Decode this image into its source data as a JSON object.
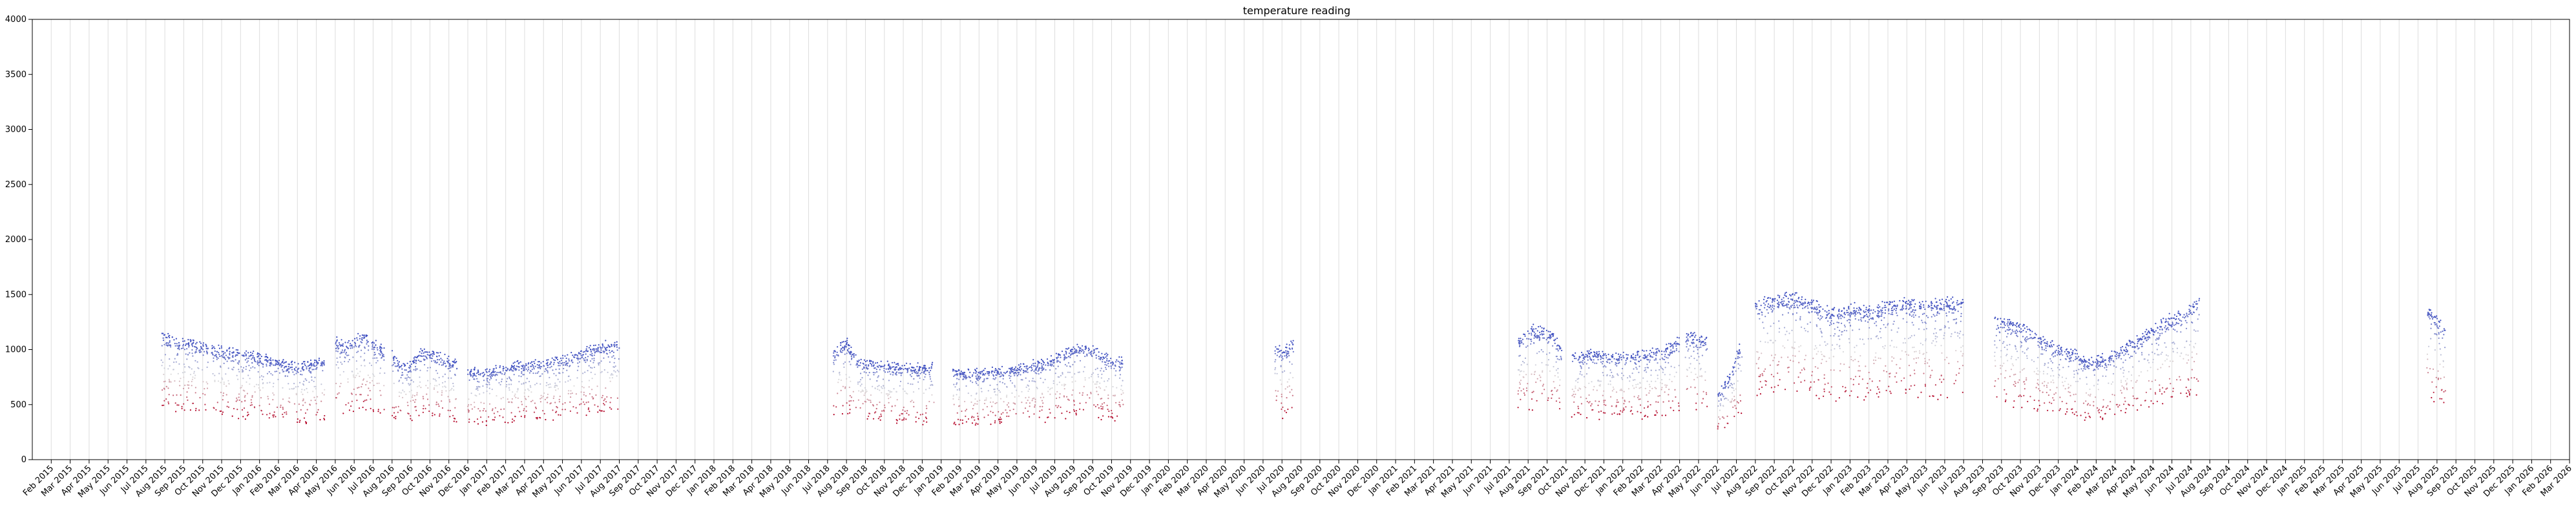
{
  "chart_data": {
    "type": "scatter",
    "title": "temperature reading",
    "xlabel": "",
    "ylabel": "",
    "ylim": [
      0,
      4000
    ],
    "yticks": [
      0,
      500,
      1000,
      1500,
      2000,
      2500,
      3000,
      3500,
      4000
    ],
    "x_axis": {
      "type": "date",
      "start": "2015-01",
      "end": "2026-03"
    },
    "xticks": [
      "Feb 2015",
      "Mar 2015",
      "Apr 2015",
      "May 2015",
      "Jun 2015",
      "Jul 2015",
      "Aug 2015",
      "Sep 2015",
      "Oct 2015",
      "Nov 2015",
      "Dec 2015",
      "Jan 2016",
      "Feb 2016",
      "Mar 2016",
      "Apr 2016",
      "May 2016",
      "Jun 2016",
      "Jul 2016",
      "Aug 2016",
      "Sep 2016",
      "Oct 2016",
      "Nov 2016",
      "Dec 2016",
      "Jan 2017",
      "Feb 2017",
      "Mar 2017",
      "Apr 2017",
      "May 2017",
      "Jun 2017",
      "Jul 2017",
      "Aug 2017",
      "Sep 2017",
      "Oct 2017",
      "Nov 2017",
      "Dec 2017",
      "Jan 2018",
      "Feb 2018",
      "Mar 2018",
      "Apr 2018",
      "May 2018",
      "Jun 2018",
      "Jul 2018",
      "Aug 2018",
      "Sep 2018",
      "Oct 2018",
      "Nov 2018",
      "Dec 2018",
      "Jan 2019",
      "Feb 2019",
      "Mar 2019",
      "Apr 2019",
      "May 2019",
      "Jun 2019",
      "Jul 2019",
      "Aug 2019",
      "Sep 2019",
      "Oct 2019",
      "Nov 2019",
      "Dec 2019",
      "Jan 2020",
      "Feb 2020",
      "Mar 2020",
      "Apr 2020",
      "May 2020",
      "Jun 2020",
      "Jul 2020",
      "Aug 2020",
      "Sep 2020",
      "Oct 2020",
      "Nov 2020",
      "Dec 2020",
      "Jan 2021",
      "Feb 2021",
      "Mar 2021",
      "Apr 2021",
      "May 2021",
      "Jun 2021",
      "Jul 2021",
      "Aug 2021",
      "Sep 2021",
      "Oct 2021",
      "Nov 2021",
      "Dec 2021",
      "Jan 2022",
      "Feb 2022",
      "Mar 2022",
      "Apr 2022",
      "May 2022",
      "Jun 2022",
      "Jul 2022",
      "Aug 2022",
      "Sep 2022",
      "Oct 2022",
      "Nov 2022",
      "Dec 2022",
      "Jan 2023",
      "Feb 2023",
      "Mar 2023",
      "Apr 2023",
      "May 2023",
      "Jun 2023",
      "Jul 2023",
      "Aug 2023",
      "Sep 2023",
      "Oct 2023",
      "Nov 2023",
      "Dec 2023",
      "Jan 2024",
      "Feb 2024",
      "Mar 2024",
      "Apr 2024",
      "May 2024",
      "Jun 2024",
      "Jul 2024",
      "Aug 2024",
      "Sep 2024",
      "Oct 2024",
      "Nov 2024",
      "Dec 2024",
      "Jan 2025",
      "Feb 2025",
      "Mar 2025",
      "Apr 2025",
      "May 2025",
      "Jun 2025",
      "Jul 2025",
      "Aug 2025",
      "Sep 2025",
      "Oct 2025",
      "Nov 2025",
      "Dec 2025",
      "Jan 2026",
      "Feb 2026",
      "Mar 2026"
    ],
    "grid": {
      "x": true,
      "y": false
    },
    "colormap": "coolwarm",
    "colors": {
      "cool": "#3b4cc0",
      "warm": "#b40426",
      "grid": "#dddddd"
    },
    "series": [
      {
        "segments": [
          {
            "x": [
              "2015-07-25",
              "2015-08-15",
              "2015-09-15",
              "2015-10-10"
            ],
            "y": [
              1150,
              1100,
              1080,
              1050
            ]
          },
          {
            "x": [
              "2015-10-15",
              "2015-11-15",
              "2015-12-15",
              "2016-01-15",
              "2016-02-15",
              "2016-03-15",
              "2016-04-15"
            ],
            "y": [
              1020,
              1000,
              980,
              920,
              880,
              870,
              920
            ]
          },
          {
            "x": [
              "2016-05-01",
              "2016-05-20",
              "2016-06-15",
              "2016-07-01",
              "2016-07-20"
            ],
            "y": [
              1100,
              1050,
              1150,
              1080,
              1000
            ]
          },
          {
            "x": [
              "2016-08-01",
              "2016-08-15",
              "2016-09-01",
              "2016-09-20",
              "2016-10-15",
              "2016-11-15"
            ],
            "y": [
              980,
              850,
              880,
              1000,
              950,
              870
            ]
          },
          {
            "x": [
              "2016-12-01",
              "2017-01-01",
              "2017-02-15",
              "2017-04-01",
              "2017-05-15",
              "2017-07-01",
              "2017-08-01"
            ],
            "y": [
              800,
              820,
              870,
              900,
              950,
              1050,
              1050
            ]
          },
          {
            "x": [
              "2018-07-10",
              "2018-08-01",
              "2018-08-20",
              "2018-09-20",
              "2018-10-20",
              "2018-11-20",
              "2018-12-20"
            ],
            "y": [
              1000,
              1080,
              900,
              880,
              860,
              850,
              860
            ]
          },
          {
            "x": [
              "2019-01-20",
              "2019-02-20",
              "2019-03-20",
              "2019-04-20",
              "2019-05-20",
              "2019-06-20",
              "2019-07-20",
              "2019-08-20",
              "2019-09-20",
              "2019-10-20"
            ],
            "y": [
              820,
              800,
              810,
              830,
              870,
              900,
              1000,
              1050,
              950,
              900
            ]
          },
          {
            "x": [
              "2020-06-20",
              "2020-07-05",
              "2020-07-20"
            ],
            "y": [
              1050,
              1000,
              1080
            ]
          },
          {
            "x": [
              "2021-07-15",
              "2021-08-10",
              "2021-09-10",
              "2021-09-25"
            ],
            "y": [
              1100,
              1200,
              1150,
              1000
            ]
          },
          {
            "x": [
              "2021-10-10",
              "2021-11-10",
              "2021-12-10",
              "2022-01-10",
              "2022-02-10",
              "2022-03-10",
              "2022-04-01"
            ],
            "y": [
              950,
              980,
              960,
              950,
              980,
              1020,
              1100
            ]
          },
          {
            "x": [
              "2022-04-10",
              "2022-05-01",
              "2022-05-15"
            ],
            "y": [
              1150,
              1120,
              1100
            ]
          },
          {
            "x": [
              "2022-06-01",
              "2022-06-20",
              "2022-07-10"
            ],
            "y": [
              600,
              750,
              1100
            ]
          },
          {
            "x": [
              "2022-08-01",
              "2022-09-01",
              "2022-10-01",
              "2022-11-01",
              "2022-12-01",
              "2023-01-01",
              "2023-02-01",
              "2023-03-01",
              "2023-04-01",
              "2023-05-01",
              "2023-06-01",
              "2023-07-01"
            ],
            "y": [
              1450,
              1480,
              1500,
              1450,
              1350,
              1400,
              1380,
              1420,
              1450,
              1420,
              1450,
              1450
            ]
          },
          {
            "x": [
              "2023-08-20",
              "2023-09-20",
              "2023-10-20",
              "2023-11-20",
              "2023-12-20",
              "2024-01-20",
              "2024-02-20",
              "2024-03-20",
              "2024-04-20",
              "2024-05-20",
              "2024-06-20",
              "2024-07-15"
            ],
            "y": [
              1300,
              1250,
              1180,
              1050,
              1000,
              900,
              950,
              1050,
              1150,
              1280,
              1350,
              1500
            ]
          },
          {
            "x": [
              "2025-07-15",
              "2025-08-01",
              "2025-08-15"
            ],
            "y": [
              1400,
              1300,
              1200
            ]
          }
        ]
      }
    ]
  }
}
